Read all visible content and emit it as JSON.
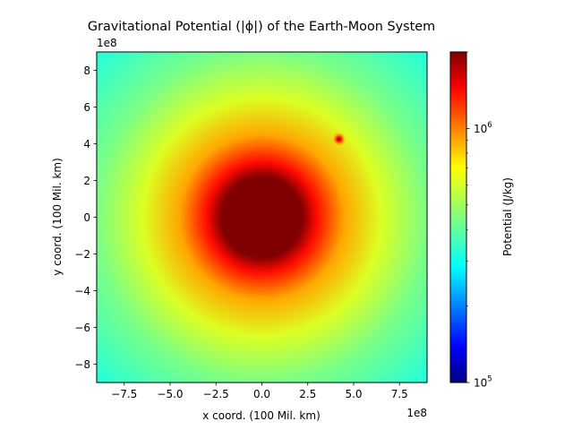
{
  "chart_data": {
    "type": "heatmap",
    "title": "Gravitational Potential (|ϕ|) of the Earth-Moon System",
    "xlabel": "x coord. (100 Mil. km)",
    "ylabel": "y coord. (100 Mil. km)",
    "x_offset_label": "1e8",
    "y_offset_label": "1e8",
    "xlim": [
      -900000000.0,
      900000000.0
    ],
    "ylim": [
      -900000000.0,
      900000000.0
    ],
    "x_ticks": [
      -7.5,
      -5.0,
      -2.5,
      0.0,
      2.5,
      5.0,
      7.5
    ],
    "x_tick_labels": [
      "−7.5",
      "−5.0",
      "−2.5",
      "0.0",
      "2.5",
      "5.0",
      "7.5"
    ],
    "y_ticks": [
      -8,
      -6,
      -4,
      -2,
      0,
      2,
      4,
      6,
      8
    ],
    "y_tick_labels": [
      "−8",
      "−6",
      "−4",
      "−2",
      "0",
      "2",
      "4",
      "6",
      "8"
    ],
    "colormap": "jet",
    "colorbar": {
      "label": "Potential (J/kg)",
      "scale": "log",
      "range": [
        100000,
        2000000
      ],
      "major_ticks": [
        100000,
        1000000
      ],
      "major_tick_labels": [
        [
          "10",
          "5"
        ],
        [
          "10",
          "6"
        ]
      ]
    },
    "bodies": [
      {
        "name": "Earth",
        "x": 0,
        "y": 0
      },
      {
        "name": "Moon",
        "x": 420000000.0,
        "y": 425000000.0
      }
    ],
    "field_samples": [
      {
        "r": 0,
        "value": 2000000
      },
      {
        "r": 220000000.0,
        "value": 2000000
      },
      {
        "r": 300000000.0,
        "value": 1400000
      },
      {
        "r": 450000000.0,
        "value": 900000
      },
      {
        "r": 650000000.0,
        "value": 620000
      },
      {
        "r": 900000000.0,
        "value": 440000
      },
      {
        "r": 1270000000.0,
        "value": 320000
      }
    ],
    "colors": {
      "core": "#800000",
      "red": "#ff0000",
      "orange": "#ff8000",
      "yellow": "#ffff00",
      "green": "#80ff80",
      "cyan": "#00ffff",
      "blue": "#0000ff",
      "navy": "#000080"
    }
  }
}
